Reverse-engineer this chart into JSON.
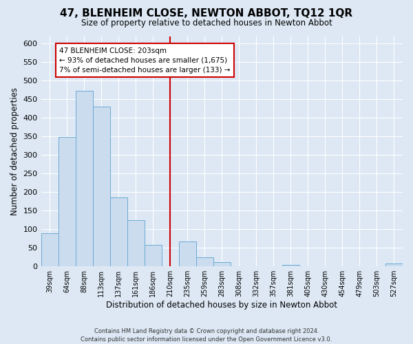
{
  "title": "47, BLENHEIM CLOSE, NEWTON ABBOT, TQ12 1QR",
  "subtitle": "Size of property relative to detached houses in Newton Abbot",
  "xlabel": "Distribution of detached houses by size in Newton Abbot",
  "ylabel": "Number of detached properties",
  "bin_labels": [
    "39sqm",
    "64sqm",
    "88sqm",
    "113sqm",
    "137sqm",
    "161sqm",
    "186sqm",
    "210sqm",
    "235sqm",
    "259sqm",
    "283sqm",
    "308sqm",
    "332sqm",
    "357sqm",
    "381sqm",
    "405sqm",
    "430sqm",
    "454sqm",
    "479sqm",
    "503sqm",
    "527sqm"
  ],
  "bar_heights": [
    90,
    348,
    472,
    430,
    185,
    124,
    57,
    0,
    67,
    25,
    12,
    0,
    0,
    0,
    3,
    0,
    0,
    0,
    0,
    0,
    7
  ],
  "bar_color": "#ccdcef",
  "bar_edge_color": "#6aaad4",
  "ylim": [
    0,
    620
  ],
  "yticks": [
    0,
    50,
    100,
    150,
    200,
    250,
    300,
    350,
    400,
    450,
    500,
    550,
    600
  ],
  "vline_x": 7,
  "vline_color": "#cc0000",
  "annotation_title": "47 BLENHEIM CLOSE: 203sqm",
  "annotation_line1": "← 93% of detached houses are smaller (1,675)",
  "annotation_line2": "7% of semi-detached houses are larger (133) →",
  "annotation_box_color": "#ffffff",
  "annotation_box_edge": "#cc0000",
  "footer1": "Contains HM Land Registry data © Crown copyright and database right 2024.",
  "footer2": "Contains public sector information licensed under the Open Government Licence v3.0.",
  "background_color": "#dde8f4",
  "plot_bg_color": "#dde8f4",
  "grid_color": "#ffffff",
  "title_fontsize": 11,
  "subtitle_fontsize": 8.5
}
